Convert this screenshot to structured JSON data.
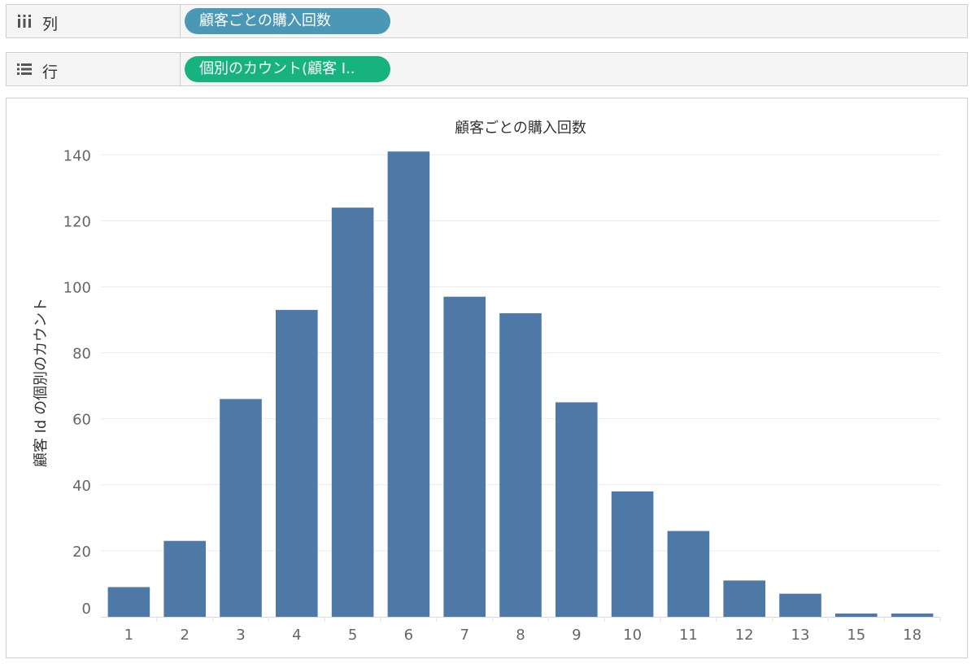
{
  "shelves": {
    "columns": {
      "label": "列",
      "pill": "顧客ごとの購入回数",
      "pill_color": "#4a98b6"
    },
    "rows": {
      "label": "行",
      "pill": "個別のカウント(顧客 I..",
      "pill_color": "#16b37e"
    }
  },
  "chart_data": {
    "type": "bar",
    "title": "顧客ごとの購入回数",
    "xlabel": "",
    "ylabel": "顧客 Id の個別のカウント",
    "categories": [
      "1",
      "2",
      "3",
      "4",
      "5",
      "6",
      "7",
      "8",
      "9",
      "10",
      "11",
      "12",
      "13",
      "15",
      "18"
    ],
    "values": [
      9,
      23,
      66,
      93,
      124,
      141,
      97,
      92,
      65,
      38,
      26,
      11,
      7,
      1,
      1
    ],
    "yticks": [
      "0",
      "20",
      "40",
      "60",
      "80",
      "100",
      "120",
      "140"
    ],
    "ylim": [
      0,
      145
    ],
    "grid": true,
    "bar_color": "#4e79a7"
  }
}
